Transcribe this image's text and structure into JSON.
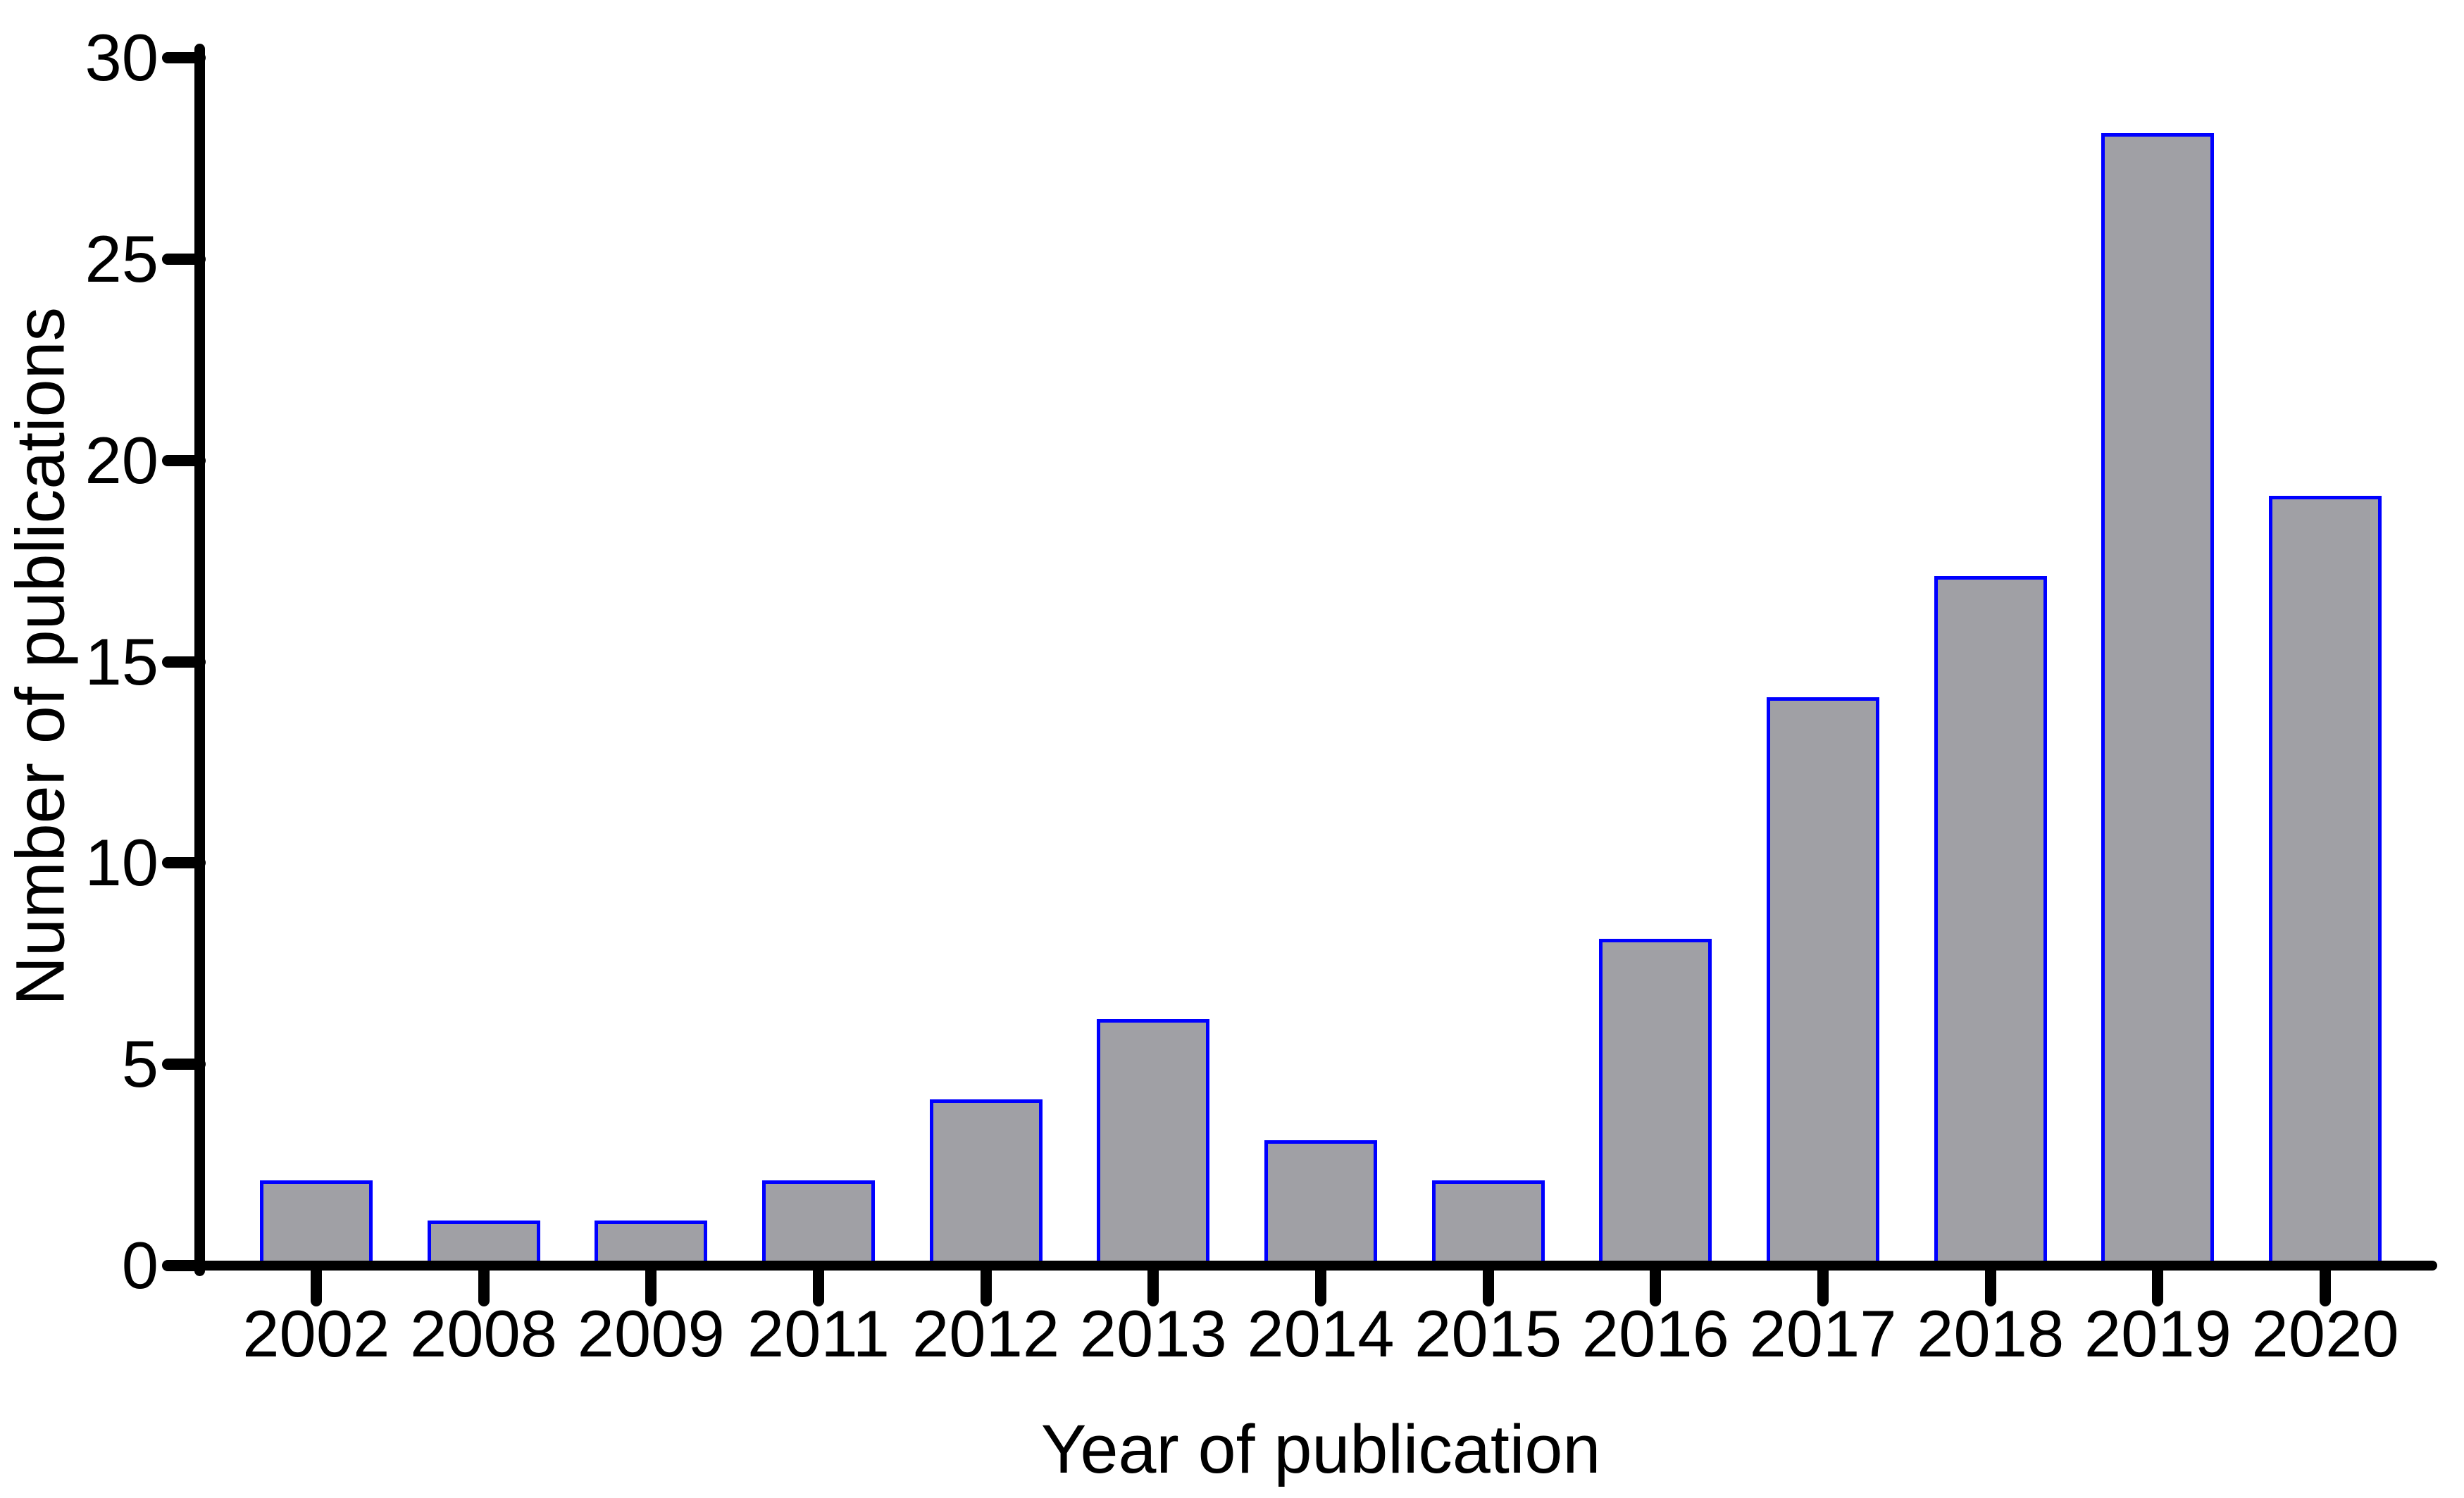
{
  "chart_data": {
    "type": "bar",
    "title": "",
    "xlabel": "Year of publication",
    "ylabel": "Number of publications",
    "categories": [
      "2002",
      "2008",
      "2009",
      "2011",
      "2012",
      "2013",
      "2014",
      "2015",
      "2016",
      "2017",
      "2018",
      "2019",
      "2020"
    ],
    "values": [
      2,
      1,
      1,
      2,
      4,
      6,
      3,
      2,
      8,
      14,
      17,
      28,
      19
    ],
    "ylim": [
      0,
      30
    ],
    "yticks": [
      0,
      5,
      10,
      15,
      20,
      25,
      30
    ],
    "grid": false,
    "legend": false,
    "colors": {
      "bar_fill": "#A0A0A5",
      "bar_border": "#0000FF",
      "axis": "#000000",
      "background": "#FFFFFF"
    }
  }
}
